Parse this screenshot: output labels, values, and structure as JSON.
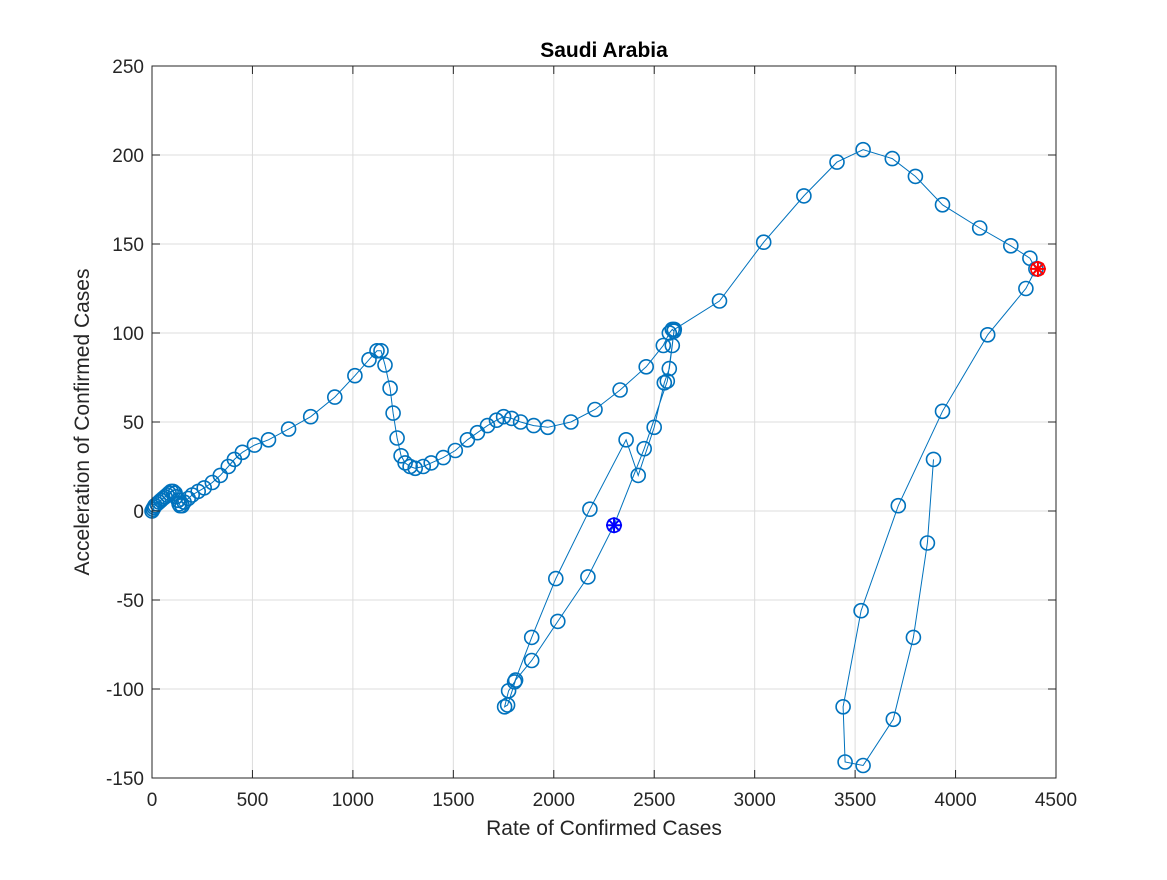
{
  "chart_data": {
    "type": "line",
    "title": "Saudi Arabia",
    "xlabel": "Rate of Confirmed Cases",
    "ylabel": "Acceleration of Confirmed Cases",
    "xlim": [
      0,
      4500
    ],
    "ylim": [
      -150,
      250
    ],
    "xticks": [
      0,
      500,
      1000,
      1500,
      2000,
      2500,
      3000,
      3500,
      4000,
      4500
    ],
    "yticks": [
      -150,
      -100,
      -50,
      0,
      50,
      100,
      150,
      200,
      250
    ],
    "xtick_labels": [
      "0",
      "500",
      "1000",
      "1500",
      "2000",
      "2500",
      "3000",
      "3500",
      "4000",
      "4500"
    ],
    "ytick_labels": [
      "-150",
      "-100",
      "-50",
      "0",
      "50",
      "100",
      "150",
      "200",
      "250"
    ],
    "grid": true,
    "legend": "none",
    "series": [
      {
        "marker": "circle",
        "color": "#0072BD",
        "x": [
          0,
          5,
          10,
          15,
          25,
          35,
          45,
          55,
          65,
          75,
          85,
          95,
          105,
          115,
          120,
          130,
          135,
          140,
          150,
          160,
          180,
          200,
          230,
          260,
          300,
          340,
          380,
          410,
          450,
          510,
          580,
          680,
          790,
          910,
          1010,
          1080,
          1120,
          1140,
          1160,
          1185,
          1200,
          1220,
          1240,
          1260,
          1285,
          1310,
          1350,
          1390,
          1450,
          1510,
          1570,
          1620,
          1670,
          1715,
          1750,
          1790,
          1835,
          1900,
          1970,
          2085,
          2205,
          2330,
          2460,
          2545,
          2575,
          2590,
          2598,
          2590,
          2575,
          2550,
          2500,
          2420,
          2360,
          2180,
          2010,
          1890,
          1805,
          1775,
          1755,
          1770,
          1810,
          1890,
          2020,
          2170,
          2300,
          2450,
          2565,
          2600,
          2825,
          3045,
          3245,
          3410,
          3540,
          3685,
          3800,
          3935,
          4120,
          4275,
          4370,
          4400,
          4350,
          4160,
          3935,
          3715,
          3530,
          3440,
          3450,
          3540,
          3690,
          3790,
          3860,
          3890
        ],
        "y": [
          0,
          1,
          2,
          3,
          4,
          5,
          6,
          7,
          8,
          9,
          10,
          11,
          11,
          10,
          8,
          6,
          4,
          3,
          3,
          5,
          7,
          9,
          11,
          13,
          16,
          20,
          25,
          29,
          33,
          37,
          40,
          46,
          53,
          64,
          76,
          85,
          90,
          90,
          82,
          69,
          55,
          41,
          31,
          27,
          25,
          24,
          25,
          27,
          30,
          34,
          40,
          44,
          48,
          51,
          53,
          52,
          50,
          48,
          47,
          50,
          57,
          68,
          81,
          93,
          100,
          102,
          101,
          93,
          80,
          72,
          47,
          20,
          40,
          1,
          -38,
          -71,
          -96,
          -101,
          -110,
          -109,
          -95,
          -84,
          -62,
          -37,
          -8,
          35,
          73,
          102,
          118,
          151,
          177,
          196,
          203,
          198,
          188,
          172,
          159,
          149,
          142,
          136,
          125,
          99,
          56,
          3,
          -56,
          -110,
          -141,
          -143,
          -117,
          -71,
          -18,
          29
        ]
      }
    ],
    "annotations": [
      {
        "marker": "star",
        "color": "#0000FF",
        "x": 2300,
        "y": -8
      },
      {
        "marker": "star",
        "color": "#FF0000",
        "x": 4410,
        "y": 136
      }
    ]
  }
}
